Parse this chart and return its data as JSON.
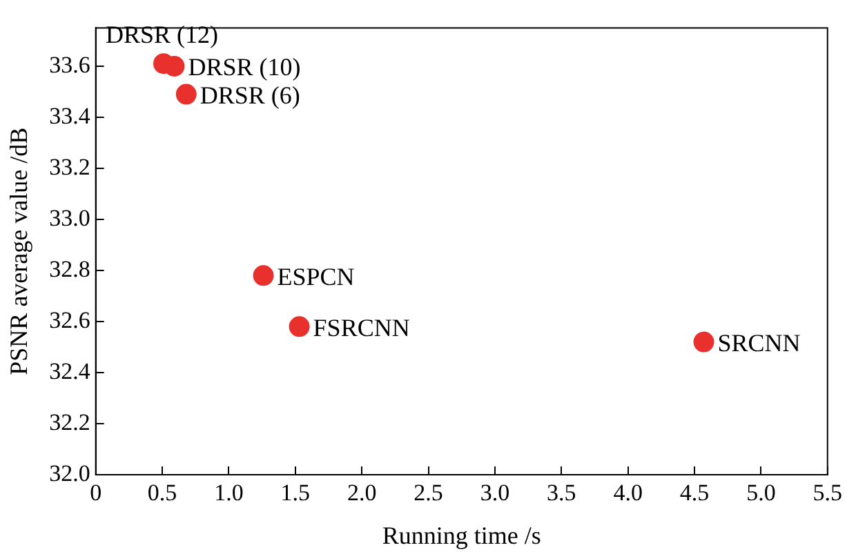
{
  "chart_data": {
    "type": "scatter",
    "xlabel": "Running time /s",
    "ylabel": "PSNR average value /dB",
    "x": [
      0.51,
      0.59,
      0.68,
      1.26,
      1.53,
      4.57
    ],
    "values": [
      33.61,
      33.6,
      33.49,
      32.78,
      32.58,
      32.52
    ],
    "color": "#e8302c",
    "marker": "circle",
    "grid": false,
    "xlim": [
      0,
      5.5
    ],
    "xticks": [
      0,
      0.5,
      {
        "value": 1,
        "label": "1.0"
      },
      1.5,
      {
        "value": 2,
        "label": "2.0"
      },
      2.5,
      {
        "value": 3,
        "label": "3.0"
      },
      3.5,
      {
        "value": 4,
        "label": "4.0"
      },
      4.5,
      {
        "value": 5,
        "label": "5.0"
      },
      5.5
    ],
    "ylim": [
      32,
      33.75
    ],
    "yticks": [
      {
        "value": 32,
        "label": "32.0"
      },
      32.2,
      32.4,
      32.6,
      32.8,
      {
        "value": 33,
        "label": "33.0"
      },
      33.2,
      33.4,
      33.6
    ],
    "annotations": [
      {
        "text": "DRSR (12)",
        "x": 0.51,
        "y": 33.61
      },
      {
        "text": "DRSR (10)",
        "x": 0.59,
        "y": 33.6
      },
      {
        "text": "DRSR (6)",
        "x": 0.68,
        "y": 33.49
      },
      {
        "text": "ESPCN",
        "x": 1.26,
        "y": 32.78
      },
      {
        "text": "FSRCNN",
        "x": 1.53,
        "y": 32.58
      },
      {
        "text": "SRCNN",
        "x": 4.57,
        "y": 32.52
      }
    ]
  }
}
